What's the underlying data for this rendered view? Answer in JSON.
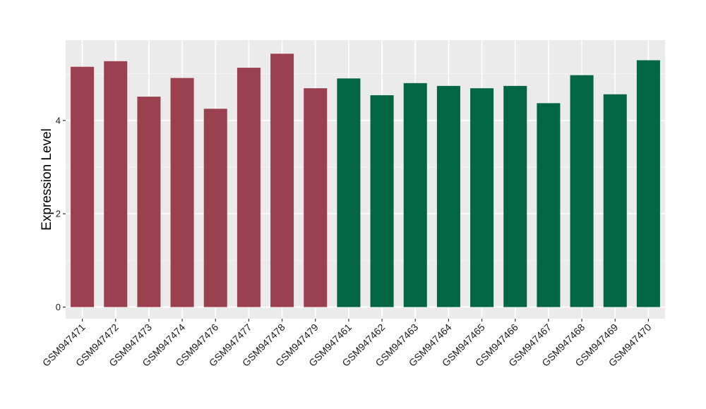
{
  "chart_data": {
    "type": "bar",
    "title": "",
    "xlabel": "",
    "ylabel": "Expression Level",
    "ylim": [
      -0.25,
      5.72
    ],
    "yticks": [
      0,
      2,
      4
    ],
    "grid": true,
    "legend": "none",
    "colors": {
      "group_a": "#9b404f",
      "group_b": "#026644",
      "panel": "#ebebeb",
      "grid_major": "#ffffff",
      "grid_minor": "#f5f5f5",
      "tick": "#333333"
    },
    "categories": [
      "GSM947471",
      "GSM947472",
      "GSM947473",
      "GSM947474",
      "GSM947476",
      "GSM947477",
      "GSM947478",
      "GSM947479",
      "GSM947461",
      "GSM947462",
      "GSM947463",
      "GSM947464",
      "GSM947465",
      "GSM947466",
      "GSM947467",
      "GSM947468",
      "GSM947469",
      "GSM947470"
    ],
    "values": [
      5.15,
      5.27,
      4.51,
      4.91,
      4.25,
      5.13,
      5.43,
      4.69,
      4.9,
      4.54,
      4.8,
      4.74,
      4.69,
      4.74,
      4.37,
      4.97,
      4.56,
      5.29
    ],
    "groups": [
      "a",
      "a",
      "a",
      "a",
      "a",
      "a",
      "a",
      "a",
      "b",
      "b",
      "b",
      "b",
      "b",
      "b",
      "b",
      "b",
      "b",
      "b"
    ]
  }
}
